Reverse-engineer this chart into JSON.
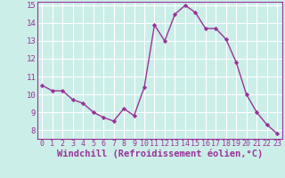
{
  "x": [
    0,
    1,
    2,
    3,
    4,
    5,
    6,
    7,
    8,
    9,
    10,
    11,
    12,
    13,
    14,
    15,
    16,
    17,
    18,
    19,
    20,
    21,
    22,
    23
  ],
  "y": [
    10.5,
    10.2,
    10.2,
    9.7,
    9.5,
    9.0,
    8.7,
    8.5,
    9.2,
    8.8,
    10.4,
    13.9,
    13.0,
    14.5,
    15.0,
    14.6,
    13.7,
    13.7,
    13.1,
    11.8,
    10.0,
    9.0,
    8.3,
    7.8
  ],
  "line_color": "#993399",
  "marker": "D",
  "marker_size": 2.2,
  "linewidth": 1.0,
  "xlabel": "Windchill (Refroidissement éolien,°C)",
  "xlabel_fontsize": 7.5,
  "bg_color": "#cceee8",
  "grid_color": "#ffffff",
  "ylim": [
    7.5,
    15.2
  ],
  "xlim": [
    -0.5,
    23.5
  ],
  "yticks": [
    8,
    9,
    10,
    11,
    12,
    13,
    14,
    15
  ],
  "xticks": [
    0,
    1,
    2,
    3,
    4,
    5,
    6,
    7,
    8,
    9,
    10,
    11,
    12,
    13,
    14,
    15,
    16,
    17,
    18,
    19,
    20,
    21,
    22,
    23
  ],
  "tick_fontsize": 6.0,
  "ytick_fontsize": 6.5
}
